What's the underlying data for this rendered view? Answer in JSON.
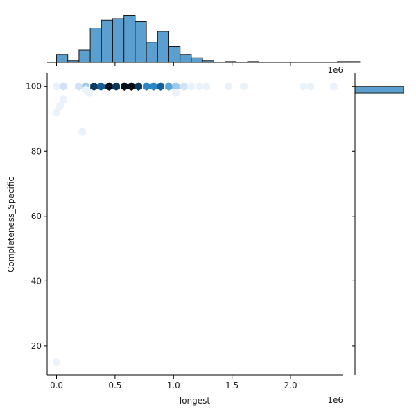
{
  "chart_data": {
    "type": "hexbin-jointplot",
    "xlabel": "longest",
    "ylabel": "Completeness_Specific",
    "x_offset_label": "1e6",
    "xlim": [
      -0.08,
      2.45
    ],
    "ylim": [
      11,
      104
    ],
    "x_ticks": [
      0.0,
      0.5,
      1.0,
      1.5,
      2.0
    ],
    "x_tick_labels": [
      "0.0",
      "0.5",
      "1.0",
      "1.5",
      "2.0"
    ],
    "y_ticks": [
      20,
      40,
      60,
      80,
      100
    ],
    "y_tick_labels": [
      "20",
      "40",
      "60",
      "80",
      "100"
    ],
    "colors": {
      "marginal_fill": "#5b9fd0",
      "marginal_edge": "#1a1a1a",
      "hex_scale": [
        "#eaf3fb",
        "#cfe3f4",
        "#9ccaec",
        "#5aa6dc",
        "#2b86c8",
        "#155f97",
        "#0b3a5e",
        "#050f19"
      ]
    },
    "hexbins": [
      {
        "x": 0.0,
        "y": 100,
        "level": 0.05
      },
      {
        "x": 0.06,
        "y": 100,
        "level": 0.15
      },
      {
        "x": 0.19,
        "y": 100,
        "level": 0.18
      },
      {
        "x": 0.25,
        "y": 100,
        "level": 0.35
      },
      {
        "x": 0.32,
        "y": 100,
        "level": 0.82
      },
      {
        "x": 0.38,
        "y": 100,
        "level": 0.65
      },
      {
        "x": 0.45,
        "y": 100,
        "level": 0.95
      },
      {
        "x": 0.51,
        "y": 100,
        "level": 0.82
      },
      {
        "x": 0.58,
        "y": 100,
        "level": 0.98
      },
      {
        "x": 0.64,
        "y": 100,
        "level": 0.96
      },
      {
        "x": 0.7,
        "y": 100,
        "level": 0.75
      },
      {
        "x": 0.77,
        "y": 100,
        "level": 0.55
      },
      {
        "x": 0.83,
        "y": 100,
        "level": 0.55
      },
      {
        "x": 0.89,
        "y": 100,
        "level": 0.72
      },
      {
        "x": 0.96,
        "y": 100,
        "level": 0.4
      },
      {
        "x": 1.02,
        "y": 100,
        "level": 0.3
      },
      {
        "x": 1.09,
        "y": 100,
        "level": 0.2
      },
      {
        "x": 1.15,
        "y": 100,
        "level": 0.12
      },
      {
        "x": 1.22,
        "y": 100,
        "level": 0.06
      },
      {
        "x": 1.28,
        "y": 100,
        "level": 0.05
      },
      {
        "x": 1.47,
        "y": 100,
        "level": 0.04
      },
      {
        "x": 1.6,
        "y": 100,
        "level": 0.04
      },
      {
        "x": 2.11,
        "y": 100,
        "level": 0.04
      },
      {
        "x": 2.17,
        "y": 100,
        "level": 0.04
      },
      {
        "x": 2.37,
        "y": 100,
        "level": 0.04
      },
      {
        "x": 0.06,
        "y": 96,
        "level": 0.04
      },
      {
        "x": 0.03,
        "y": 94,
        "level": 0.1
      },
      {
        "x": 0.0,
        "y": 92,
        "level": 0.04
      },
      {
        "x": 0.28,
        "y": 98,
        "level": 0.12
      },
      {
        "x": 0.25,
        "y": 99,
        "level": 0.06
      },
      {
        "x": 1.02,
        "y": 98,
        "level": 0.04
      },
      {
        "x": 0.22,
        "y": 86,
        "level": 0.05
      },
      {
        "x": 0.0,
        "y": 15,
        "level": 0.05
      }
    ],
    "x_marginal_hist": {
      "bin_start": 0.0,
      "bin_width": 0.096,
      "counts": [
        5,
        1,
        8,
        22,
        27,
        28,
        30,
        26,
        13,
        20,
        10,
        5,
        3,
        1,
        0,
        0.5,
        0,
        0.5,
        0,
        0,
        0,
        0,
        0,
        0,
        0,
        0.5,
        0.5
      ],
      "max_count": 32
    },
    "y_marginal_hist": {
      "bins": [
        {
          "y0": 98,
          "y1": 100,
          "count": 1.0
        }
      ]
    }
  }
}
